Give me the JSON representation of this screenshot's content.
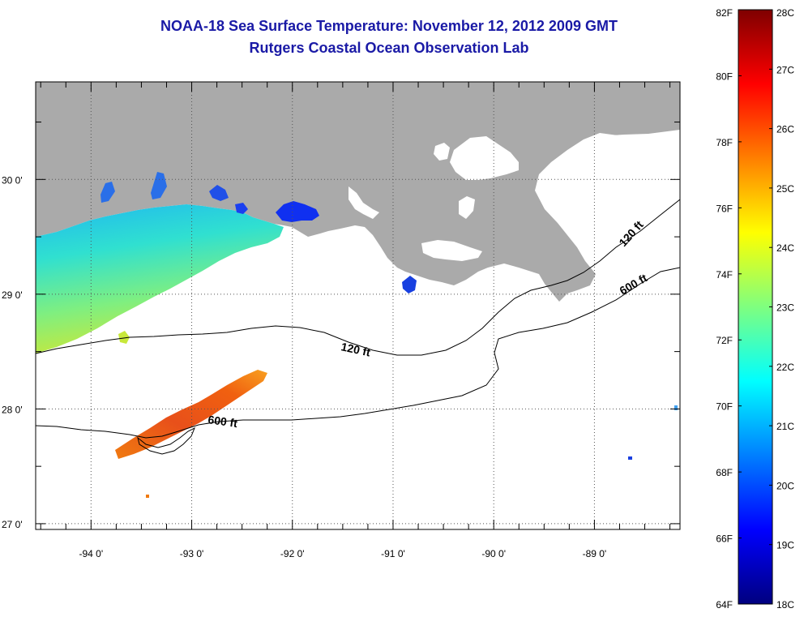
{
  "title": "NOAA-18 Sea Surface Temperature:  November 12, 2012 2009 GMT",
  "subtitle": "Rutgers Coastal Ocean Observation Lab",
  "map": {
    "lat_labels": [
      "30 0'",
      "29 0'",
      "28 0'",
      "27 0'"
    ],
    "lon_labels": [
      "-94 0'",
      "-93 0'",
      "-92 0'",
      "-91 0'",
      "-90 0'",
      "-89 0'"
    ],
    "lat_range": [
      26.95,
      30.85
    ],
    "lon_range": [
      -94.55,
      -88.15
    ],
    "grid": "dotted",
    "contours": [
      {
        "label": "120 ft"
      },
      {
        "label": "120 ft"
      },
      {
        "label": "600 ft"
      },
      {
        "label": "600 ft"
      }
    ],
    "colors": {
      "land": "#aaaaaa",
      "no_data": "#ffffff",
      "grid": "#555555"
    }
  },
  "colorbar": {
    "f_labels": [
      "82F",
      "80F",
      "78F",
      "76F",
      "74F",
      "72F",
      "70F",
      "68F",
      "66F",
      "64F"
    ],
    "c_labels": [
      "28C",
      "27C",
      "26C",
      "25C",
      "24C",
      "23C",
      "22C",
      "21C",
      "20C",
      "19C",
      "18C"
    ],
    "range_f": [
      64,
      82
    ],
    "range_c": [
      18,
      28
    ],
    "palette": [
      "#00007f",
      "#0000ff",
      "#007fff",
      "#00ffff",
      "#7fff7f",
      "#ffff00",
      "#ff7f00",
      "#ff0000",
      "#7f0000"
    ]
  }
}
